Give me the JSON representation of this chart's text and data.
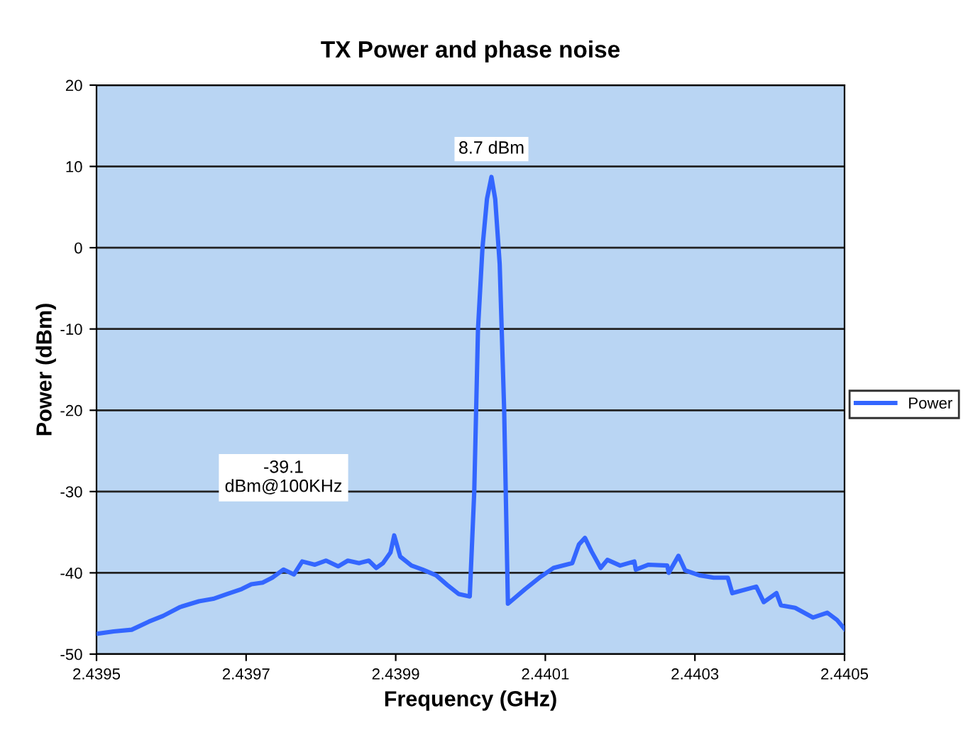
{
  "chart_data": {
    "type": "line",
    "title": "TX Power and phase noise",
    "xlabel": "Frequency (GHz)",
    "ylabel": "Power (dBm)",
    "x": [
      2.4395,
      2.439523,
      2.439547,
      2.43957,
      2.439589,
      2.439612,
      2.439637,
      2.439656,
      2.439675,
      2.439694,
      2.439707,
      2.439722,
      2.439735,
      2.43975,
      2.439764,
      2.439775,
      2.439792,
      2.439807,
      2.439823,
      2.439836,
      2.439851,
      2.439864,
      2.439874,
      2.439883,
      2.439893,
      2.439898,
      2.439906,
      2.439921,
      2.439936,
      2.439954,
      2.439969,
      2.439984,
      2.439999,
      2.440005,
      2.44001,
      2.440016,
      2.440022,
      2.440028,
      2.440033,
      2.440039,
      2.440045,
      2.44005,
      2.440073,
      2.440092,
      2.440111,
      2.440136,
      2.440145,
      2.440153,
      2.440162,
      2.440174,
      2.440183,
      2.4402,
      2.440219,
      2.440221,
      2.440238,
      2.440263,
      2.440265,
      2.440278,
      2.440287,
      2.440306,
      2.440325,
      2.440344,
      2.44035,
      2.440382,
      2.440392,
      2.440409,
      2.440415,
      2.440434,
      2.440458,
      2.440477,
      2.44049,
      2.4405
    ],
    "series": [
      {
        "name": "Power",
        "color": "#3366ff",
        "values": [
          -47.5,
          -47.2,
          -47.0,
          -46.0,
          -45.3,
          -44.2,
          -43.5,
          -43.2,
          -42.6,
          -42.0,
          -41.4,
          -41.2,
          -40.6,
          -39.6,
          -40.2,
          -38.6,
          -39.0,
          -38.5,
          -39.2,
          -38.5,
          -38.8,
          -38.5,
          -39.4,
          -38.8,
          -37.5,
          -35.4,
          -38.0,
          -39.1,
          -39.6,
          -40.3,
          -41.5,
          -42.6,
          -42.9,
          -30.0,
          -10.0,
          0.0,
          6.0,
          8.7,
          6.0,
          -2.0,
          -20.0,
          -43.8,
          -42.0,
          -40.6,
          -39.4,
          -38.8,
          -36.5,
          -35.7,
          -37.4,
          -39.4,
          -38.4,
          -39.1,
          -38.6,
          -39.6,
          -39.0,
          -39.1,
          -40.0,
          -37.9,
          -39.7,
          -40.3,
          -40.6,
          -40.6,
          -42.5,
          -41.7,
          -43.6,
          -42.5,
          -44.0,
          -44.3,
          -45.5,
          -44.9,
          -45.8,
          -46.9
        ]
      }
    ],
    "xlim": [
      2.4395,
      2.4405
    ],
    "xticks": [
      {
        "value": 2.4395,
        "label": "2.4395"
      },
      {
        "value": 2.4397,
        "label": "2.4397"
      },
      {
        "value": 2.4399,
        "label": "2.4399"
      },
      {
        "value": 2.4401,
        "label": "2.4401"
      },
      {
        "value": 2.4403,
        "label": "2.4403"
      },
      {
        "value": 2.4405,
        "label": "2.4405"
      }
    ],
    "ylim": [
      -50,
      20
    ],
    "yticks": [
      -50,
      -40,
      -30,
      -20,
      -10,
      0,
      10,
      20
    ],
    "annotations": [
      {
        "text": "8.7 dBm",
        "x": 2.440028,
        "y": 8.7
      },
      "-39.1\ndBm@100KHz"
    ],
    "grid": "y",
    "legend": "right",
    "marker": "none",
    "line_style": "solid"
  }
}
